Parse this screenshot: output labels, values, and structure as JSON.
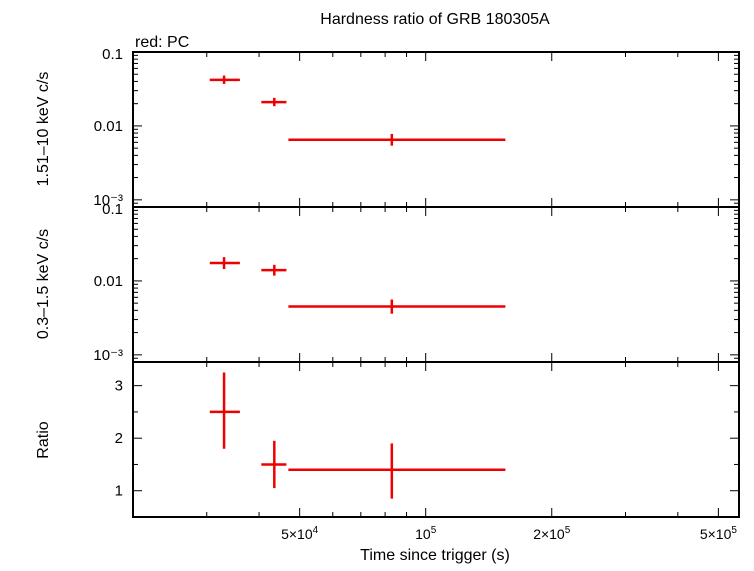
{
  "title": "Hardness ratio of GRB 180305A",
  "legend_note": "red: PC",
  "colors": {
    "data": "#ee0000",
    "axes": "#000000",
    "background": "#ffffff"
  },
  "chart_data": [
    {
      "type": "scatter",
      "panel": "top",
      "ylabel": "1.51–10 keV c/s",
      "xscale": "log",
      "yscale": "log",
      "xlim": [
        20000,
        560000
      ],
      "ylim": [
        0.0008,
        0.1
      ],
      "ytick_values": [
        0.1,
        0.01,
        0.001
      ],
      "ytick_labels": [
        "0.1",
        "0.01",
        "10⁻³"
      ],
      "series": [
        {
          "color": "#ee0000",
          "points": [
            {
              "x": 33000,
              "xlo": 30500,
              "xhi": 36000,
              "y": 0.042,
              "ylo": 0.037,
              "yhi": 0.048
            },
            {
              "x": 43500,
              "xlo": 40500,
              "xhi": 46500,
              "y": 0.021,
              "ylo": 0.0185,
              "yhi": 0.024
            },
            {
              "x": 83000,
              "xlo": 47000,
              "xhi": 155000,
              "y": 0.0065,
              "ylo": 0.0054,
              "yhi": 0.0078
            }
          ]
        }
      ]
    },
    {
      "type": "scatter",
      "panel": "middle",
      "ylabel": "0.3–1.5 keV c/s",
      "xscale": "log",
      "yscale": "log",
      "xlim": [
        20000,
        560000
      ],
      "ylim": [
        0.0008,
        0.1
      ],
      "ytick_values": [
        0.1,
        0.01,
        0.001
      ],
      "ytick_labels": [
        "0.1",
        "0.01",
        "10⁻³"
      ],
      "series": [
        {
          "color": "#ee0000",
          "points": [
            {
              "x": 33000,
              "xlo": 30500,
              "xhi": 36000,
              "y": 0.0175,
              "ylo": 0.0145,
              "yhi": 0.021
            },
            {
              "x": 43500,
              "xlo": 40500,
              "xhi": 46500,
              "y": 0.014,
              "ylo": 0.0118,
              "yhi": 0.0165
            },
            {
              "x": 83000,
              "xlo": 47000,
              "xhi": 155000,
              "y": 0.0045,
              "ylo": 0.0036,
              "yhi": 0.0056
            }
          ]
        }
      ]
    },
    {
      "type": "scatter",
      "panel": "bottom",
      "ylabel": "Ratio",
      "xlabel": "Time since trigger (s)",
      "xscale": "log",
      "yscale": "linear",
      "xlim": [
        20000,
        560000
      ],
      "ylim": [
        0.5,
        3.45
      ],
      "ytick_values": [
        1,
        2,
        3
      ],
      "ytick_labels": [
        "1",
        "2",
        "3"
      ],
      "xtick_values": [
        50000,
        100000,
        200000,
        500000
      ],
      "xtick_labels": [
        {
          "base": "5×10",
          "exp": "4"
        },
        {
          "base": "10",
          "exp": "5"
        },
        {
          "base": "2×10",
          "exp": "5"
        },
        {
          "base": "5×10",
          "exp": "5"
        }
      ],
      "series": [
        {
          "color": "#ee0000",
          "points": [
            {
              "x": 33000,
              "xlo": 30500,
              "xhi": 36000,
              "y": 2.5,
              "ylo": 1.8,
              "yhi": 3.25
            },
            {
              "x": 43500,
              "xlo": 40500,
              "xhi": 46500,
              "y": 1.5,
              "ylo": 1.05,
              "yhi": 1.95
            },
            {
              "x": 83000,
              "xlo": 47000,
              "xhi": 155000,
              "y": 1.4,
              "ylo": 0.85,
              "yhi": 1.9
            }
          ]
        }
      ]
    }
  ]
}
